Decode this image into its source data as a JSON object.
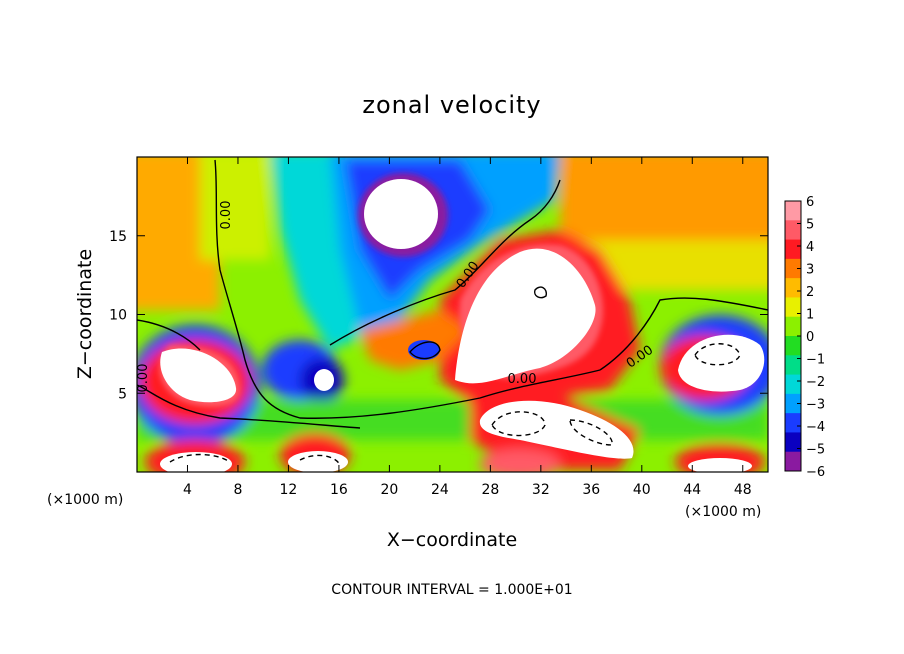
{
  "chart_data": {
    "type": "heatmap",
    "title": "zonal velocity",
    "xlabel": "X−coordinate",
    "ylabel": "Z−coordinate",
    "x_unit_label": "(×1000 m)",
    "z_unit_label": "(×1000 m)",
    "xlim": [
      0,
      50
    ],
    "ylim": [
      0,
      20
    ],
    "xticks": [
      "4",
      "8",
      "12",
      "16",
      "20",
      "24",
      "28",
      "32",
      "36",
      "40",
      "44",
      "48"
    ],
    "yticks": [
      "5",
      "10",
      "15"
    ],
    "contour_interval_text": "CONTOUR INTERVAL = 1.000E+01",
    "contour_labels": [
      "0.00",
      "0.00",
      "0.00",
      "0.00",
      "0.00"
    ],
    "colorbar": {
      "labels": [
        "6",
        "5",
        "4",
        "3",
        "2",
        "1",
        "0",
        "−1",
        "−2",
        "−3",
        "−4",
        "−5",
        "−6"
      ],
      "range": [
        -6,
        6
      ],
      "colors": [
        "#ff9aa5",
        "#ff5a66",
        "#ff1a22",
        "#ff7a00",
        "#ffbb00",
        "#e8f000",
        "#8cf000",
        "#22dd22",
        "#00dd88",
        "#00d8d8",
        "#00a0ff",
        "#1a3cff",
        "#0a00c0",
        "#8a1aa0"
      ]
    },
    "features": [
      {
        "kind": "saturated_max",
        "name": "central positive jet",
        "x": [
          26,
          38
        ],
        "z": [
          5,
          14
        ]
      },
      {
        "kind": "saturated_min",
        "name": "upper negative core",
        "x": [
          17.5,
          23.5
        ],
        "z": [
          14,
          18.5
        ]
      },
      {
        "kind": "saturated_max",
        "name": "left low-level jet",
        "x": [
          1,
          8
        ],
        "z": [
          3.5,
          8
        ]
      },
      {
        "kind": "saturated_max",
        "name": "right low-level jet",
        "x": [
          42,
          50
        ],
        "z": [
          4.5,
          8.5
        ]
      },
      {
        "kind": "saturated_max",
        "name": "surface band",
        "x": [
          26,
          40
        ],
        "z": [
          1,
          4.5
        ]
      }
    ]
  }
}
